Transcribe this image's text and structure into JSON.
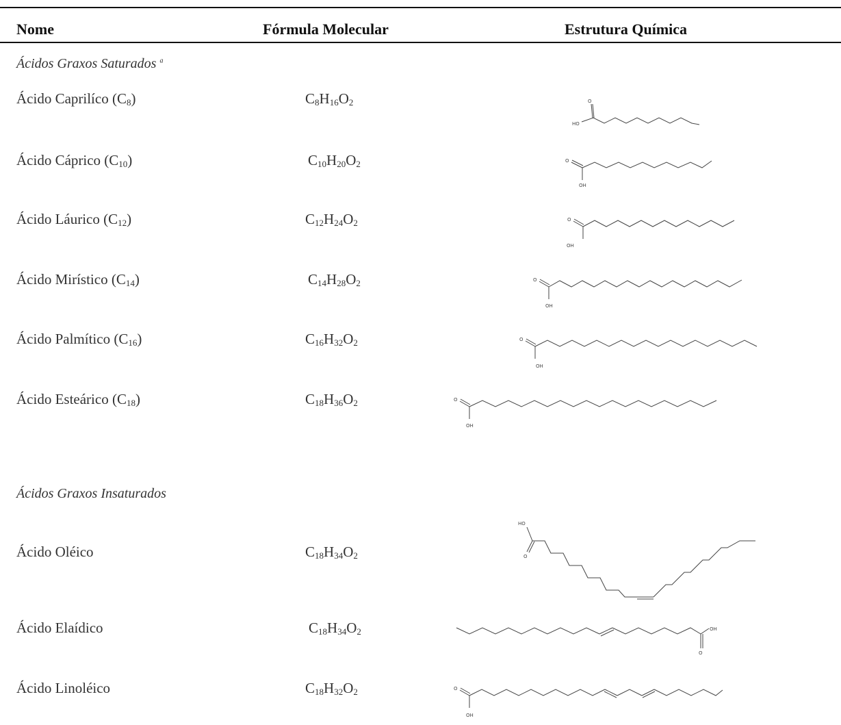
{
  "headers": {
    "name": "Nome",
    "formula": "Fórmula Molecular",
    "structure": "Estrutura Química"
  },
  "sections": {
    "saturated": "Ácidos Graxos Saturados",
    "saturated_mark": "a",
    "unsaturated": "Ácidos Graxos Insaturados"
  },
  "atom_labels": {
    "o": "O",
    "oh": "OH",
    "ho": "HO"
  },
  "rows": [
    {
      "name": "Ácido Caprilíco",
      "name_carbon": "8",
      "formula": [
        "C",
        "8",
        "H",
        "16",
        "O",
        "2"
      ]
    },
    {
      "name": "Ácido Cáprico",
      "name_carbon": "10",
      "formula": [
        "C",
        "10",
        "H",
        "20",
        "O",
        "2"
      ]
    },
    {
      "name": "Ácido Láurico",
      "name_carbon": "12",
      "formula": [
        "C",
        "12",
        "H",
        "24",
        "O",
        "2"
      ]
    },
    {
      "name": "Ácido Mirístico",
      "name_carbon": "14",
      "formula": [
        "C",
        "14",
        "H",
        "28",
        "O",
        "2"
      ]
    },
    {
      "name": "Ácido Palmítico",
      "name_carbon": "16",
      "formula": [
        "C",
        "16",
        "H",
        "32",
        "O",
        "2"
      ]
    },
    {
      "name": "Ácido Esteárico",
      "name_carbon": "18",
      "formula": [
        "C",
        "18",
        "H",
        "36",
        "O",
        "2"
      ]
    },
    {
      "name": "Ácido Oléico",
      "formula": [
        "C",
        "18",
        "H",
        "34",
        "O",
        "2"
      ]
    },
    {
      "name": "Ácido Elaídico",
      "formula": [
        "C",
        "18",
        "H",
        "34",
        "O",
        "2"
      ]
    },
    {
      "name": "Ácido Linoléico",
      "formula": [
        "C",
        "18",
        "H",
        "32",
        "O",
        "2"
      ]
    }
  ]
}
